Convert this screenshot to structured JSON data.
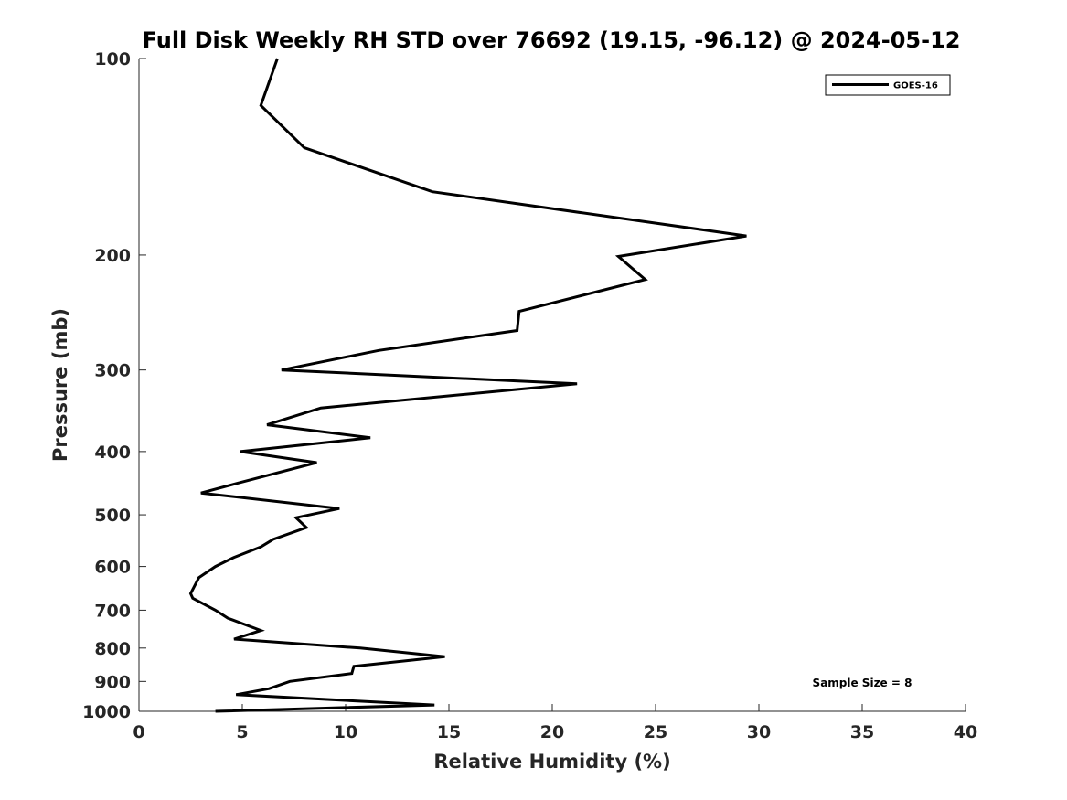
{
  "chart_data": {
    "type": "line",
    "title": "Full Disk Weekly RH STD over 76692 (19.15, -96.12) @ 2024-05-12",
    "xlabel": "Relative Humidity (%)",
    "ylabel": "Pressure (mb)",
    "xlim": [
      0,
      40
    ],
    "ylim": [
      1000,
      100
    ],
    "yscale": "log",
    "x_ticks": [
      "0",
      "5",
      "10",
      "15",
      "20",
      "25",
      "30",
      "35",
      "40"
    ],
    "y_ticks": [
      "100",
      "200",
      "300",
      "400",
      "500",
      "600",
      "700",
      "800",
      "900",
      "1000"
    ],
    "grid": false,
    "legend": {
      "position": "top-right",
      "entries": [
        "GOES-16"
      ]
    },
    "annotation": "Sample Size = 8",
    "series": [
      {
        "name": "GOES-16",
        "color": "#000000",
        "points": [
          [
            6.7,
            100
          ],
          [
            5.9,
            118
          ],
          [
            8.0,
            137
          ],
          [
            14.2,
            160
          ],
          [
            29.4,
            187
          ],
          [
            23.2,
            201
          ],
          [
            24.5,
            218
          ],
          [
            18.4,
            244
          ],
          [
            18.3,
            261
          ],
          [
            11.6,
            280
          ],
          [
            6.9,
            300
          ],
          [
            21.2,
            315
          ],
          [
            8.8,
            343
          ],
          [
            6.2,
            364
          ],
          [
            11.2,
            381
          ],
          [
            4.9,
            400
          ],
          [
            8.6,
            416
          ],
          [
            4.8,
            447
          ],
          [
            3.0,
            463
          ],
          [
            9.7,
            489
          ],
          [
            7.6,
            505
          ],
          [
            8.1,
            523
          ],
          [
            6.5,
            545
          ],
          [
            5.9,
            560
          ],
          [
            4.6,
            581
          ],
          [
            3.7,
            600
          ],
          [
            2.9,
            624
          ],
          [
            2.5,
            660
          ],
          [
            2.6,
            671
          ],
          [
            3.7,
            700
          ],
          [
            4.3,
            720
          ],
          [
            5.9,
            752
          ],
          [
            4.6,
            775
          ],
          [
            10.7,
            800
          ],
          [
            14.8,
            825
          ],
          [
            10.4,
            853
          ],
          [
            10.3,
            875
          ],
          [
            7.3,
            900
          ],
          [
            6.3,
            923
          ],
          [
            4.7,
            943
          ],
          [
            14.3,
            978
          ],
          [
            3.7,
            1000
          ]
        ]
      }
    ]
  }
}
